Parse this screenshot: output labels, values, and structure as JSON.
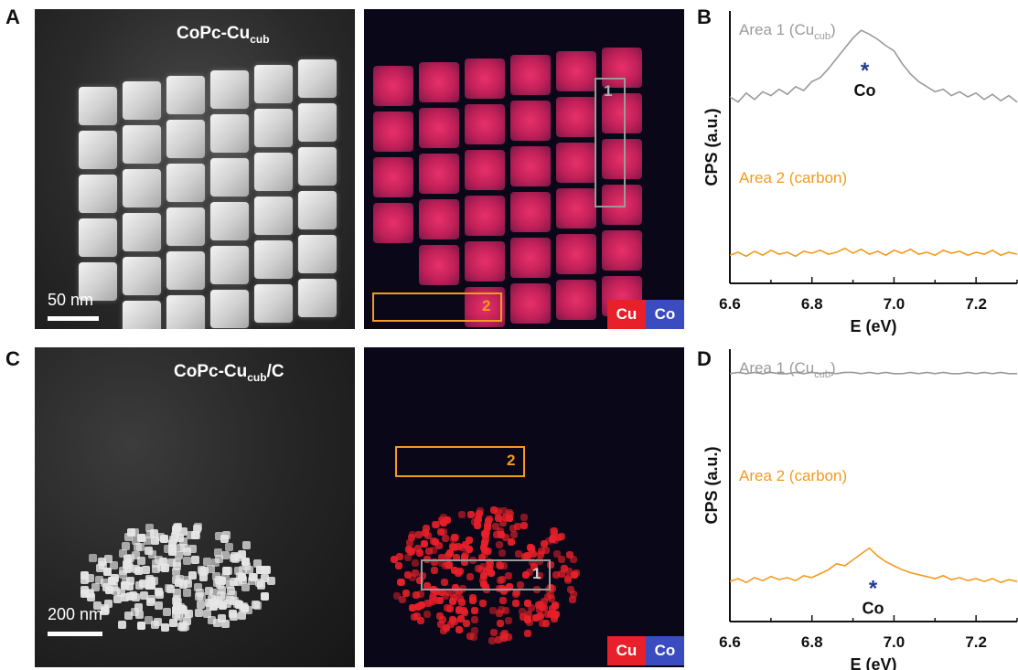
{
  "panels": {
    "A": {
      "letter": "A",
      "title_main": "CoPc-Cu",
      "title_sub": "cub",
      "scale_label": "50 nm"
    },
    "A_map": {
      "box1_label": "1",
      "box2_label": "2",
      "legend_cu": "Cu",
      "legend_co": "Co"
    },
    "B": {
      "letter": "B",
      "series1_label_main": "Area 1 (Cu",
      "series1_label_sub": "cub",
      "series1_label_end": ")",
      "series2_label": "Area 2 (carbon)",
      "peak_marker": "*",
      "peak_label": "Co"
    },
    "C": {
      "letter": "C",
      "title_main": "CoPc-Cu",
      "title_sub": "cub",
      "title_end": "/C",
      "scale_label": "200 nm"
    },
    "C_map": {
      "box1_label": "1",
      "box2_label": "2",
      "legend_cu": "Cu",
      "legend_co": "Co"
    },
    "D": {
      "letter": "D",
      "series1_label_main": "Area 1 (Cu",
      "series1_label_sub": "cub",
      "series1_label_end": ")",
      "series2_label": "Area 2 (carbon)",
      "peak_marker": "*",
      "peak_label": "Co"
    }
  },
  "colors": {
    "area1": "#9a9a9a",
    "area2": "#f39a1f",
    "cu": "#e8202a",
    "co": "#3b4cc0",
    "peak_marker": "#1f3a9a"
  },
  "chart_data": [
    {
      "type": "line",
      "panel": "B",
      "xlabel": "E (eV)",
      "ylabel": "CPS (a.u.)",
      "xlim": [
        6.6,
        7.3
      ],
      "x_ticks": [
        "6.6",
        "6.8",
        "7.0",
        "7.2"
      ],
      "x": [
        6.6,
        6.62,
        6.64,
        6.66,
        6.68,
        6.7,
        6.72,
        6.74,
        6.76,
        6.78,
        6.8,
        6.82,
        6.84,
        6.86,
        6.88,
        6.9,
        6.92,
        6.94,
        6.96,
        6.98,
        7.0,
        7.02,
        7.04,
        7.06,
        7.08,
        7.1,
        7.12,
        7.14,
        7.16,
        7.18,
        7.2,
        7.22,
        7.24,
        7.26,
        7.28,
        7.3
      ],
      "series": [
        {
          "name": "Area 1 (Cucub)",
          "values": [
            0.4,
            0.36,
            0.43,
            0.38,
            0.44,
            0.41,
            0.46,
            0.42,
            0.48,
            0.45,
            0.52,
            0.55,
            0.62,
            0.7,
            0.78,
            0.86,
            0.92,
            0.89,
            0.85,
            0.8,
            0.76,
            0.66,
            0.58,
            0.52,
            0.48,
            0.44,
            0.46,
            0.41,
            0.44,
            0.4,
            0.43,
            0.38,
            0.42,
            0.37,
            0.41,
            0.36
          ]
        },
        {
          "name": "Area 2 (carbon)",
          "values": [
            0.1,
            0.13,
            0.09,
            0.14,
            0.1,
            0.15,
            0.11,
            0.13,
            0.09,
            0.14,
            0.12,
            0.15,
            0.11,
            0.13,
            0.17,
            0.12,
            0.16,
            0.11,
            0.14,
            0.1,
            0.15,
            0.12,
            0.16,
            0.11,
            0.13,
            0.1,
            0.15,
            0.12,
            0.14,
            0.1,
            0.13,
            0.11,
            0.15,
            0.1,
            0.13,
            0.11
          ]
        }
      ]
    },
    {
      "type": "line",
      "panel": "D",
      "xlabel": "E (eV)",
      "ylabel": "CPS (a.u.)",
      "xlim": [
        6.6,
        7.3
      ],
      "x_ticks": [
        "6.6",
        "6.8",
        "7.0",
        "7.2"
      ],
      "x": [
        6.6,
        6.62,
        6.64,
        6.66,
        6.68,
        6.7,
        6.72,
        6.74,
        6.76,
        6.78,
        6.8,
        6.82,
        6.84,
        6.86,
        6.88,
        6.9,
        6.92,
        6.94,
        6.96,
        6.98,
        7.0,
        7.02,
        7.04,
        7.06,
        7.08,
        7.1,
        7.12,
        7.14,
        7.16,
        7.18,
        7.2,
        7.22,
        7.24,
        7.26,
        7.28,
        7.3
      ],
      "series": [
        {
          "name": "Area 1 (Cucub)",
          "values": [
            0.88,
            0.89,
            0.88,
            0.89,
            0.88,
            0.89,
            0.88,
            0.88,
            0.89,
            0.88,
            0.89,
            0.88,
            0.89,
            0.88,
            0.89,
            0.89,
            0.88,
            0.89,
            0.88,
            0.89,
            0.88,
            0.88,
            0.89,
            0.88,
            0.89,
            0.88,
            0.89,
            0.88,
            0.88,
            0.89,
            0.88,
            0.89,
            0.88,
            0.89,
            0.88,
            0.88
          ]
        },
        {
          "name": "Area 2 (carbon)",
          "values": [
            0.22,
            0.25,
            0.21,
            0.26,
            0.23,
            0.27,
            0.24,
            0.26,
            0.23,
            0.28,
            0.26,
            0.3,
            0.34,
            0.4,
            0.38,
            0.44,
            0.5,
            0.56,
            0.48,
            0.42,
            0.38,
            0.34,
            0.31,
            0.29,
            0.27,
            0.25,
            0.28,
            0.24,
            0.26,
            0.23,
            0.25,
            0.22,
            0.25,
            0.21,
            0.24,
            0.22
          ]
        }
      ]
    }
  ]
}
